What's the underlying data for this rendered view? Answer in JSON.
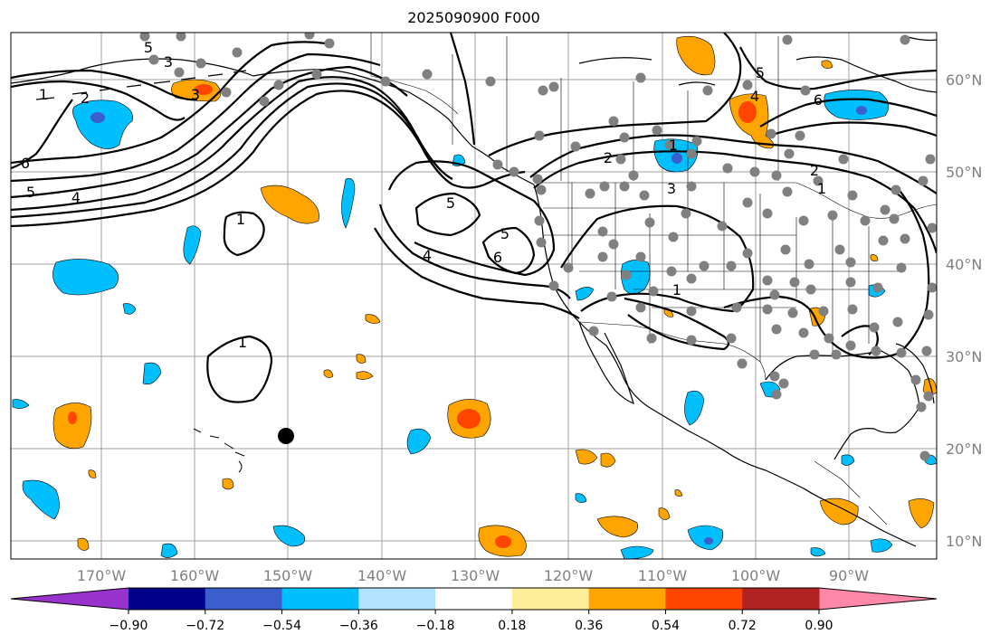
{
  "title": "2025090900 F000",
  "map": {
    "lon_labels": [
      "170°W",
      "160°W",
      "150°W",
      "140°W",
      "130°W",
      "120°W",
      "110°W",
      "100°W",
      "90°W"
    ],
    "lat_labels": [
      "60°N",
      "50°N",
      "40°N",
      "30°N",
      "20°N",
      "10°N"
    ],
    "contour_labels": [
      "1",
      "2",
      "3",
      "3",
      "5",
      "6",
      "5",
      "4",
      "1",
      "1",
      "1",
      "2",
      "3",
      "4",
      "5",
      "6",
      "5",
      "6",
      "5",
      "4",
      "1",
      "2",
      "1"
    ],
    "marker": {
      "lon": -150,
      "lat": 21.3
    }
  },
  "colorbar": {
    "tick_labels": [
      "−0.90",
      "−0.72",
      "−0.54",
      "−0.36",
      "−0.18",
      "0.18",
      "0.36",
      "0.54",
      "0.72",
      "0.90"
    ],
    "colors": [
      "#9932cc",
      "#00008b",
      "#3a5fcd",
      "#00bfff",
      "#b2e2ff",
      "#ffffff",
      "#ffee99",
      "#ffa500",
      "#ff4500",
      "#b22222",
      "#ff88aa"
    ]
  }
}
